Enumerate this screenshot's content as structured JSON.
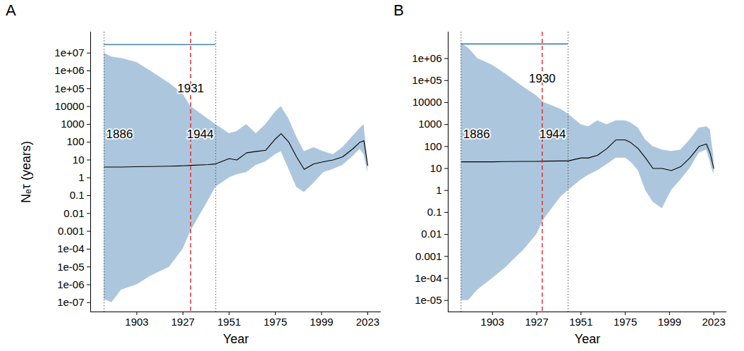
{
  "chart_data": [
    {
      "type": "line",
      "title": "A",
      "xlabel": "Year",
      "ylabel": "Nₑτ (years)",
      "log": "y",
      "xlim": [
        1879,
        2030
      ],
      "xticks": [
        1903,
        1927,
        1951,
        1975,
        1999,
        2023
      ],
      "ylim": [
        3e-08,
        150000000.0
      ],
      "yticks": [
        {
          "value": 1e-07,
          "label": "1e-07"
        },
        {
          "value": 1e-06,
          "label": "1e-06"
        },
        {
          "value": 1e-05,
          "label": "1e-05"
        },
        {
          "value": 0.0001,
          "label": "1e-04"
        },
        0.001,
        0.01,
        0.1,
        1,
        10,
        100,
        1000,
        10000,
        {
          "value": 100000,
          "label": "1e+05"
        },
        {
          "value": 1000000,
          "label": "1e+06"
        },
        {
          "value": 10000000,
          "label": "1e+07"
        }
      ],
      "x": [
        1886,
        1890,
        1895,
        1903,
        1910,
        1920,
        1927,
        1931,
        1940,
        1944,
        1951,
        1955,
        1960,
        1965,
        1970,
        1975,
        1978,
        1982,
        1986,
        1990,
        1995,
        2000,
        2005,
        2010,
        2015,
        2019,
        2021,
        2023
      ],
      "series": [
        {
          "type": "area",
          "color": "#4682b4",
          "lower": [
            1.5e-07,
            1e-07,
            5e-07,
            1e-06,
            3e-06,
            1e-05,
            0.0001,
            0.001,
            0.05,
            0.3,
            1,
            1.5,
            2,
            5,
            8,
            20,
            30,
            3,
            0.3,
            0.15,
            0.5,
            2,
            3,
            5,
            15,
            40,
            20,
            2
          ],
          "upper": [
            10000000,
            6000000,
            5000000,
            3000000,
            1000000,
            200000,
            50000,
            10000,
            2000,
            1000,
            300,
            400,
            1000,
            300,
            1000,
            5000,
            10000,
            2000,
            200,
            30,
            50,
            30,
            20,
            50,
            200,
            600,
            1000,
            10
          ]
        },
        {
          "type": "line",
          "color": "#000000",
          "values": [
            4,
            4,
            4,
            4.2,
            4.3,
            4.5,
            4.7,
            5,
            5.5,
            6,
            12,
            10,
            25,
            30,
            35,
            150,
            300,
            100,
            15,
            3,
            6,
            8,
            10,
            15,
            40,
            100,
            120,
            5
          ]
        }
      ],
      "vlines": [
        {
          "x": 1886,
          "color": "#555555",
          "line_style": "dotted"
        },
        {
          "x": 1931,
          "color": "#e8212a",
          "line_style": "dashed"
        },
        {
          "x": 1944,
          "color": "#555555",
          "line_style": "dotted"
        }
      ],
      "interval": {
        "x": [
          1886,
          1944
        ],
        "y": 30000000,
        "color": "#4682b4"
      },
      "annotations": [
        {
          "text": "1886",
          "x": 1886,
          "y": 275
        },
        {
          "text": "1931",
          "x": 1931,
          "y": 100000
        },
        {
          "text": "1944",
          "x": 1944,
          "y": 275
        }
      ]
    },
    {
      "type": "line",
      "title": "B",
      "xlabel": "Year",
      "log": "y",
      "xlim": [
        1879,
        2030
      ],
      "xticks": [
        1903,
        1927,
        1951,
        1975,
        1999,
        2023
      ],
      "ylim": [
        3e-06,
        16000000.0
      ],
      "yticks": [
        {
          "value": 1e-05,
          "label": "1e-05"
        },
        {
          "value": 0.0001,
          "label": "1e-04"
        },
        0.001,
        0.01,
        0.1,
        1,
        10,
        100,
        1000,
        10000,
        {
          "value": 100000,
          "label": "1e+05"
        },
        {
          "value": 1000000,
          "label": "1e+06"
        }
      ],
      "x": [
        1886,
        1890,
        1895,
        1903,
        1910,
        1920,
        1927,
        1931,
        1940,
        1944,
        1951,
        1955,
        1960,
        1965,
        1970,
        1975,
        1978,
        1982,
        1986,
        1990,
        1995,
        2000,
        2005,
        2010,
        2015,
        2019,
        2021,
        2023
      ],
      "series": [
        {
          "type": "area",
          "color": "#4682b4",
          "lower": [
            1e-05,
            1e-05,
            3e-05,
            0.0001,
            0.0003,
            0.002,
            0.01,
            0.05,
            0.5,
            1,
            3,
            5,
            8,
            15,
            30,
            30,
            20,
            8,
            1,
            0.3,
            0.15,
            1,
            3,
            10,
            50,
            70,
            20,
            5
          ],
          "upper": [
            5000000,
            3000000,
            1000000,
            500000,
            200000,
            50000,
            20000,
            10000,
            5000,
            3000,
            1000,
            800,
            1500,
            1000,
            1500,
            1500,
            1200,
            700,
            200,
            100,
            70,
            60,
            70,
            200,
            700,
            800,
            600,
            30
          ]
        },
        {
          "type": "line",
          "color": "#000000",
          "values": [
            20,
            20,
            20,
            20,
            20.5,
            21,
            21,
            21.5,
            22,
            22,
            30,
            30,
            40,
            80,
            200,
            200,
            150,
            80,
            30,
            10,
            10,
            8,
            12,
            30,
            100,
            130,
            50,
            10
          ]
        }
      ],
      "vlines": [
        {
          "x": 1886,
          "color": "#555555",
          "line_style": "dotted"
        },
        {
          "x": 1930,
          "color": "#e8212a",
          "line_style": "dashed"
        },
        {
          "x": 1944,
          "color": "#555555",
          "line_style": "dotted"
        }
      ],
      "interval": {
        "x": [
          1886,
          1944
        ],
        "y": 4600000,
        "color": "#4682b4"
      },
      "annotations": [
        {
          "text": "1886",
          "x": 1886,
          "y": 350
        },
        {
          "text": "1930",
          "x": 1930,
          "y": 120000
        },
        {
          "text": "1944",
          "x": 1944,
          "y": 350
        }
      ]
    }
  ]
}
